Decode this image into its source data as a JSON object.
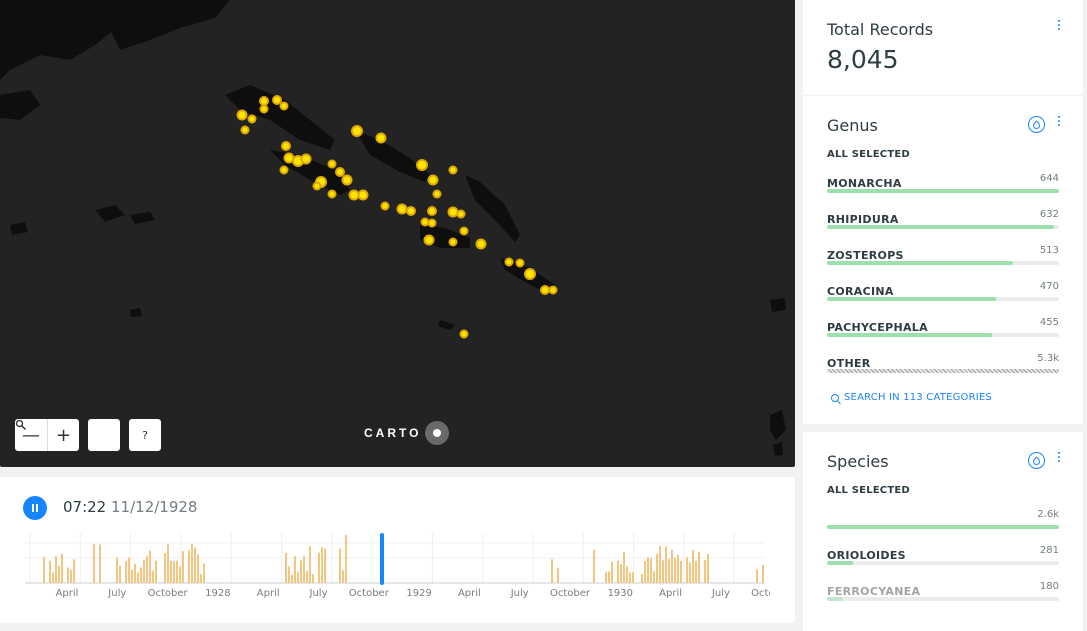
{
  "map": {
    "zoom_out_label": "—",
    "zoom_in_label": "+",
    "search_icon": "search-icon",
    "help_label": "?",
    "attribution": "CARTO",
    "land_color": "#0e0e0e",
    "water_color": "#232323",
    "point_color": "#ffe600"
  },
  "timeline": {
    "time": "07:22",
    "date": "11/12/1928",
    "bar_color": "#f2c580",
    "cursor_color": "#1785fb",
    "axis_labels": [
      "April",
      "July",
      "October",
      "1928",
      "April",
      "July",
      "October",
      "1929",
      "April",
      "July",
      "October",
      "1930",
      "April",
      "July",
      "October"
    ]
  },
  "widgets": {
    "total": {
      "title": "Total Records",
      "value": "8,045"
    },
    "genus": {
      "title": "Genus",
      "status": "ALL SELECTED",
      "items": [
        {
          "name": "MONARCHA",
          "count": "644",
          "fraction": 1.0
        },
        {
          "name": "RHIPIDURA",
          "count": "632",
          "fraction": 0.98
        },
        {
          "name": "ZOSTEROPS",
          "count": "513",
          "fraction": 0.8
        },
        {
          "name": "CORACINA",
          "count": "470",
          "fraction": 0.73
        },
        {
          "name": "PACHYCEPHALA",
          "count": "455",
          "fraction": 0.71
        },
        {
          "name": "OTHER",
          "count": "5.3k",
          "fraction": 1.0
        }
      ],
      "search_label": "SEARCH IN 113 CATEGORIES"
    },
    "species": {
      "title": "Species",
      "status": "ALL SELECTED",
      "items": [
        {
          "name": "",
          "count": "2.6k",
          "fraction": 1.0
        },
        {
          "name": "ORIOLOIDES",
          "count": "281",
          "fraction": 0.11
        },
        {
          "name": "FERROCYANEA",
          "count": "180",
          "fraction": 0.07
        }
      ]
    }
  }
}
